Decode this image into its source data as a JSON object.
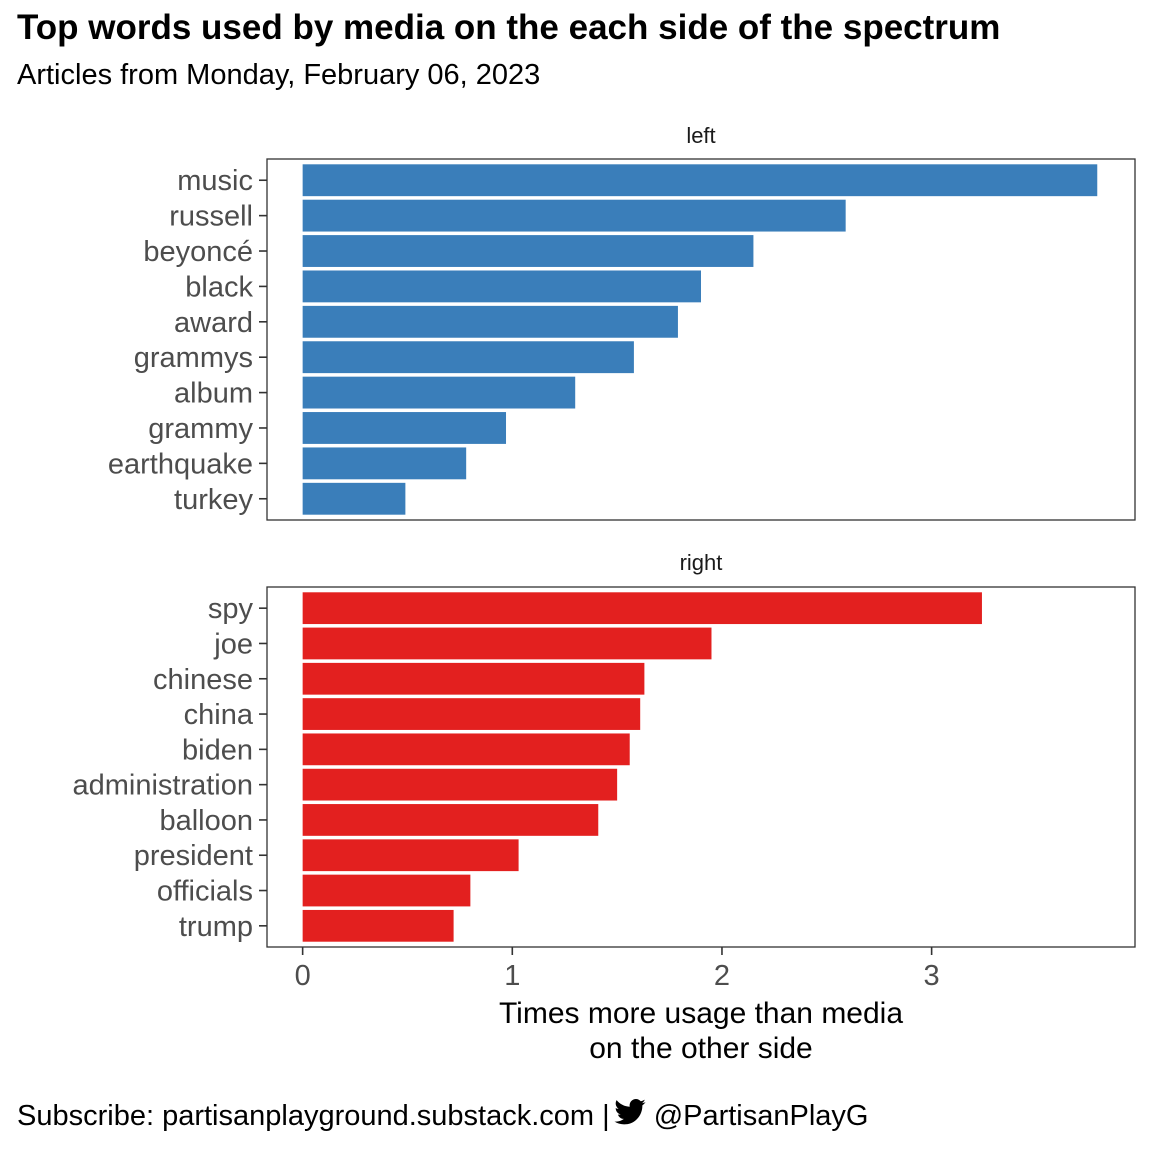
{
  "title": "Top words used by media on the each side of the spectrum",
  "subtitle": "Articles from Monday, February 06, 2023",
  "caption": {
    "subscribe_text": "Subscribe: partisanplayground.substack.com |",
    "handle": "@PartisanPlayG",
    "icon": "twitter-bird-icon"
  },
  "colors": {
    "left": "#3A7EBA",
    "right": "#E3201F"
  },
  "chart_data": {
    "type": "bar",
    "orientation": "horizontal",
    "facets": [
      "left",
      "right"
    ],
    "xlabel": "Times more usage than media on the other side",
    "xlabel_lines": [
      "Times more usage than media",
      "on the other side"
    ],
    "ylabel": "",
    "xlim": [
      -0.17,
      3.97
    ],
    "xticks": [
      0,
      1,
      2,
      3
    ],
    "grid": false,
    "legend": "none",
    "series": [
      {
        "name": "left",
        "categories": [
          "music",
          "russell",
          "beyoncé",
          "black",
          "award",
          "grammys",
          "album",
          "grammy",
          "earthquake",
          "turkey"
        ],
        "values": [
          3.79,
          2.59,
          2.15,
          1.9,
          1.79,
          1.58,
          1.3,
          0.97,
          0.78,
          0.49
        ]
      },
      {
        "name": "right",
        "categories": [
          "spy",
          "joe",
          "chinese",
          "china",
          "biden",
          "administration",
          "balloon",
          "president",
          "officials",
          "trump"
        ],
        "values": [
          3.24,
          1.95,
          1.63,
          1.61,
          1.56,
          1.5,
          1.41,
          1.03,
          0.8,
          0.72
        ]
      }
    ]
  }
}
